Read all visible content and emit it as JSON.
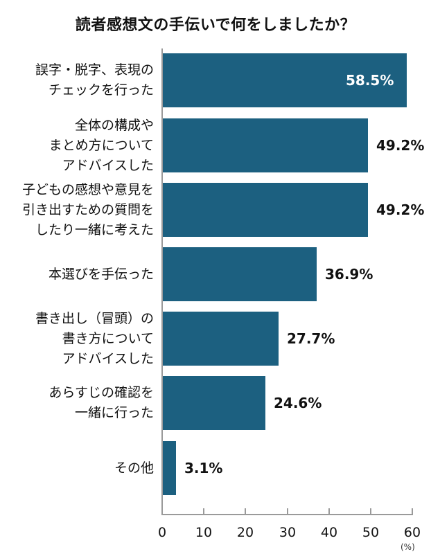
{
  "title": "読者感想文の手伝いで何をしましたか？",
  "colors": {
    "bar": "#1c6080",
    "axis": "#9a9a9a",
    "text": "#111111",
    "inside_label": "#ffffff"
  },
  "x_axis": {
    "ticks": [
      "0",
      "10",
      "20",
      "30",
      "40",
      "50",
      "60"
    ],
    "unit": "(%)"
  },
  "bars": [
    {
      "lines": [
        "誤字・脱字、表現の",
        "チェックを行った"
      ],
      "value": 58.5,
      "label": "58.5%"
    },
    {
      "lines": [
        "全体の構成や",
        "まとめ方について",
        "アドバイスした"
      ],
      "value": 49.2,
      "label": "49.2%"
    },
    {
      "lines": [
        "子どもの感想や意見を",
        "引き出すための質問を",
        "したり一緒に考えた"
      ],
      "value": 49.2,
      "label": "49.2%"
    },
    {
      "lines": [
        "本選びを手伝った"
      ],
      "value": 36.9,
      "label": "36.9%"
    },
    {
      "lines": [
        "書き出し（冒頭）の",
        "書き方について",
        "アドバイスした"
      ],
      "value": 27.7,
      "label": "27.7%"
    },
    {
      "lines": [
        "あらすじの確認を",
        "一緒に行った"
      ],
      "value": 24.6,
      "label": "24.6%"
    },
    {
      "lines": [
        "その他"
      ],
      "value": 3.1,
      "label": "3.1%"
    }
  ],
  "chart_data": {
    "type": "bar",
    "orientation": "horizontal",
    "title": "読者感想文の手伝いで何をしましたか？",
    "categories": [
      "誤字・脱字、表現のチェックを行った",
      "全体の構成やまとめ方についてアドバイスした",
      "子どもの感想や意見を引き出すための質問をしたり一緒に考えた",
      "本選びを手伝った",
      "書き出し（冒頭）の書き方についてアドバイスした",
      "あらすじの確認を一緒に行った",
      "その他"
    ],
    "values": [
      58.5,
      49.2,
      49.2,
      36.9,
      27.7,
      24.6,
      3.1
    ],
    "data_labels": [
      "58.5%",
      "49.2%",
      "49.2%",
      "36.9%",
      "27.7%",
      "24.6%",
      "3.1%"
    ],
    "xlabel": "(%)",
    "ylabel": "",
    "xlim": [
      0,
      60
    ],
    "x_ticks": [
      0,
      10,
      20,
      30,
      40,
      50,
      60
    ],
    "grid": false,
    "legend": null
  }
}
